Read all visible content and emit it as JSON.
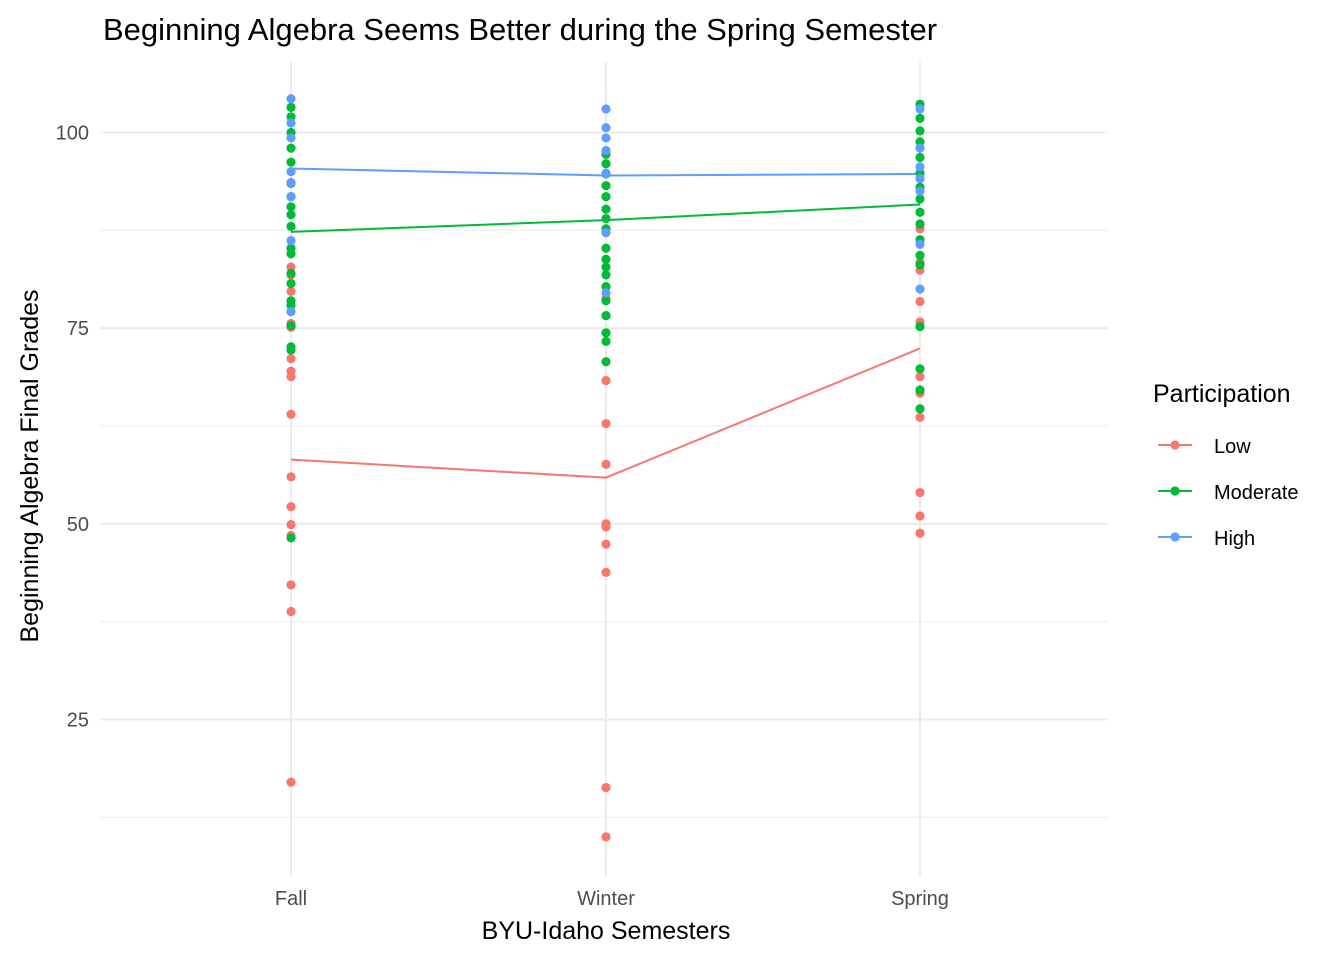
{
  "chart_data": {
    "type": "scatter",
    "title": "Beginning Algebra Seems Better during the Spring Semester",
    "xlabel": "BYU-Idaho Semesters",
    "ylabel": "Beginning Algebra Final Grades",
    "categories": [
      "Fall",
      "Winter",
      "Spring"
    ],
    "ylim": [
      5,
      109
    ],
    "yticks": [
      25,
      50,
      75,
      100
    ],
    "grid": true,
    "legend": {
      "title": "Participation",
      "position": "right"
    },
    "series": [
      {
        "name": "Low",
        "color": "#F8766D",
        "mean_line": [
          58.2,
          55.9,
          72.4
        ],
        "points": [
          [
            [
              17,
              38.8,
              42.2,
              48.5,
              49.9,
              52.2,
              56.0,
              64.0,
              68.8,
              69.5,
              71.1,
              75.1,
              75.6,
              79.7,
              81.8,
              82.8
            ]
          ],
          [
            [
              10.0,
              16.3,
              43.8,
              47.4,
              49.6,
              50.0,
              57.6,
              62.8,
              68.3,
              78.8
            ]
          ],
          [
            [
              48.8,
              51.0,
              54.0,
              63.6,
              66.7,
              68.8,
              75.8,
              78.4,
              82.4,
              83.4,
              87.7
            ]
          ]
        ]
      },
      {
        "name": "Moderate",
        "color": "#00BA38",
        "mean_line": [
          87.3,
          88.8,
          90.8
        ],
        "points": [
          [
            [
              48.2,
              72.2,
              72.6,
              75.3,
              77.9,
              78.5,
              80.7,
              82.0,
              84.5,
              85.2,
              88.0,
              89.5,
              90.5,
              91.8,
              93.5,
              96.2,
              98.0,
              100.0,
              102.0,
              103.2
            ]
          ],
          [
            [
              70.7,
              73.3,
              74.4,
              76.6,
              78.5,
              80.3,
              81.8,
              82.8,
              83.8,
              85.2,
              87.7,
              89.0,
              90.2,
              91.8,
              93.2,
              94.7,
              96.0,
              97.2
            ]
          ],
          [
            [
              64.7,
              67.1,
              69.8,
              75.2,
              83.1,
              84.3,
              86.3,
              88.3,
              89.8,
              91.5,
              93.0,
              94.8,
              96.8,
              98.8,
              100.2,
              101.8,
              103.6
            ]
          ]
        ]
      },
      {
        "name": "High",
        "color": "#619CFF",
        "mean_line": [
          95.4,
          94.5,
          94.7
        ],
        "points": [
          [
            [
              77.1,
              86.2,
              91.8,
              93.6,
              95.0,
              99.3,
              101.2,
              104.3
            ]
          ],
          [
            [
              79.5,
              87.2,
              94.8,
              97.7,
              99.3,
              100.6,
              103.0
            ]
          ],
          [
            [
              80.0,
              85.7,
              92.5,
              94.1,
              95.6,
              98.0,
              103.0
            ]
          ]
        ]
      }
    ]
  }
}
